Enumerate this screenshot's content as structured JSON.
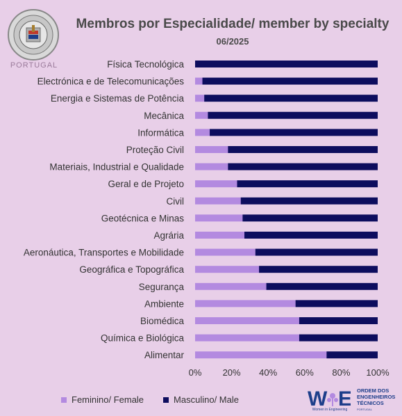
{
  "header": {
    "title": "Membros por Especialidade/ member by specialty",
    "subtitle": "06/2025"
  },
  "logo": {
    "caption": "PORTUGAL"
  },
  "legend": {
    "female_label": "Feminino/  Female",
    "male_label": "Masculino/ Male"
  },
  "branding": {
    "woe_caption": "Women in Engineering",
    "oet_line1": "ORDEM DOS",
    "oet_line2": "ENGENHEIROS",
    "oet_line3": "TÉCNICOS",
    "oet_line4": "PORTUGAL"
  },
  "colors": {
    "background": "#e8cfe8",
    "female": "#b38ae0",
    "male": "#0d0d5e",
    "text": "#4a4a4a"
  },
  "chart_data": {
    "type": "bar",
    "orientation": "horizontal",
    "stacked": "percent",
    "title": "Membros por Especialidade/ member by specialty",
    "subtitle": "06/2025",
    "categories": [
      "Física Tecnológica",
      "Electrónica e de Telecomunicações",
      "Energia e Sistemas de Potência",
      "Mecânica",
      "Informática",
      "Proteção Civil",
      "Materiais, Industrial e Qualidade",
      "Geral e de Projeto",
      "Civil",
      "Geotécnica e Minas",
      "Agrária",
      "Aeronáutica, Transportes e Mobilidade",
      "Geográfica e Topográfica",
      "Segurança",
      "Ambiente",
      "Biomédica",
      "Química e Biológica",
      "Alimentar"
    ],
    "series": [
      {
        "name": "Feminino/  Female",
        "color": "#b38ae0",
        "values": [
          0,
          4,
          5,
          7,
          8,
          18,
          18,
          23,
          25,
          26,
          27,
          33,
          35,
          39,
          55,
          57,
          57,
          72
        ]
      },
      {
        "name": "Masculino/ Male",
        "color": "#0d0d5e",
        "values": [
          100,
          96,
          95,
          93,
          92,
          82,
          82,
          77,
          75,
          74,
          73,
          67,
          65,
          61,
          45,
          43,
          43,
          28
        ]
      }
    ],
    "xlim": [
      0,
      100
    ],
    "xticks": [
      "0%",
      "20%",
      "40%",
      "60%",
      "80%",
      "100%"
    ],
    "legend_position": "bottom",
    "grid": false
  }
}
